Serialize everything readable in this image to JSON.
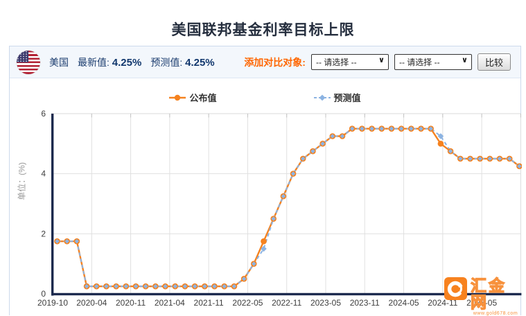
{
  "page_title": "美国联邦基金利率目标上限",
  "header": {
    "country": "美国",
    "latest_label": "最新值:",
    "latest_value": "4.25%",
    "forecast_label": "预测值:",
    "forecast_value": "4.25%",
    "compare_label": "添加对比对象:",
    "select_placeholder": "-- 请选择 --",
    "compare_button": "比较"
  },
  "legend": {
    "published": "公布值",
    "forecast": "预测值"
  },
  "colors": {
    "published_orange": "#f5821f",
    "forecast_blue": "#8cb3e2",
    "axis_navy": "#1c2a4e",
    "gridline": "#e0e0e0",
    "compare_label_orange": "#ff6600",
    "watermark_orange": "#f7821f"
  },
  "chart_data": {
    "type": "line",
    "title": "美国联邦基金利率目标上限",
    "ylabel": "单位：(%)",
    "ylim": [
      0,
      6
    ],
    "yticks": [
      0,
      2,
      4,
      6
    ],
    "grid": true,
    "legend_position": "top-center",
    "x_labels": [
      "2019-10",
      "2020-04",
      "2020-11",
      "2021-04",
      "2021-11",
      "2022-05",
      "2022-11",
      "2023-05",
      "2023-11",
      "2024-05",
      "2024-11",
      "2025-05"
    ],
    "x_label_step": 4,
    "categories": [
      "2019-10",
      "2019-12",
      "2020-01",
      "2020-03",
      "2020-04",
      "2020-06",
      "2020-07",
      "2020-09",
      "2020-11",
      "2020-12",
      "2021-01",
      "2021-03",
      "2021-04",
      "2021-06",
      "2021-07",
      "2021-09",
      "2021-11",
      "2021-12",
      "2022-01",
      "2022-03",
      "2022-05",
      "2022-06",
      "2022-07",
      "2022-09",
      "2022-11",
      "2022-12",
      "2023-02",
      "2023-03",
      "2023-05",
      "2023-06",
      "2023-07",
      "2023-09",
      "2023-11",
      "2023-12",
      "2024-01",
      "2024-03",
      "2024-05",
      "2024-06",
      "2024-07",
      "2024-09",
      "2024-11",
      "2024-12",
      "2025-01",
      "2025-03",
      "2025-05",
      "2025-06",
      "2025-07",
      "2025-09"
    ],
    "series": [
      {
        "name": "公布值",
        "color": "#f5821f",
        "style": "solid",
        "marker": "circle",
        "values": [
          1.75,
          1.75,
          1.75,
          0.25,
          0.25,
          0.25,
          0.25,
          0.25,
          0.25,
          0.25,
          0.25,
          0.25,
          0.25,
          0.25,
          0.25,
          0.25,
          0.25,
          0.25,
          0.25,
          0.5,
          1.0,
          1.75,
          2.5,
          3.25,
          4.0,
          4.5,
          4.75,
          5.0,
          5.25,
          5.25,
          5.5,
          5.5,
          5.5,
          5.5,
          5.5,
          5.5,
          5.5,
          5.5,
          5.5,
          5.0,
          4.75,
          4.5,
          4.5,
          4.5,
          4.5,
          4.5,
          4.5,
          4.25
        ]
      },
      {
        "name": "预测值",
        "color": "#8cb3e2",
        "style": "dashed",
        "marker": "diamond",
        "values": [
          1.75,
          1.75,
          1.75,
          0.25,
          0.25,
          0.25,
          0.25,
          0.25,
          0.25,
          0.25,
          0.25,
          0.25,
          0.25,
          0.25,
          0.25,
          0.25,
          0.25,
          0.25,
          0.25,
          0.5,
          1.0,
          1.5,
          2.5,
          3.25,
          4.0,
          4.5,
          4.75,
          5.0,
          5.25,
          5.25,
          5.5,
          5.5,
          5.5,
          5.5,
          5.5,
          5.5,
          5.5,
          5.5,
          5.5,
          5.25,
          4.75,
          4.5,
          4.5,
          4.5,
          4.5,
          4.5,
          4.5,
          4.25
        ]
      }
    ]
  },
  "watermark": {
    "site_name": "汇金网",
    "site_url": "www.gold678.com"
  }
}
